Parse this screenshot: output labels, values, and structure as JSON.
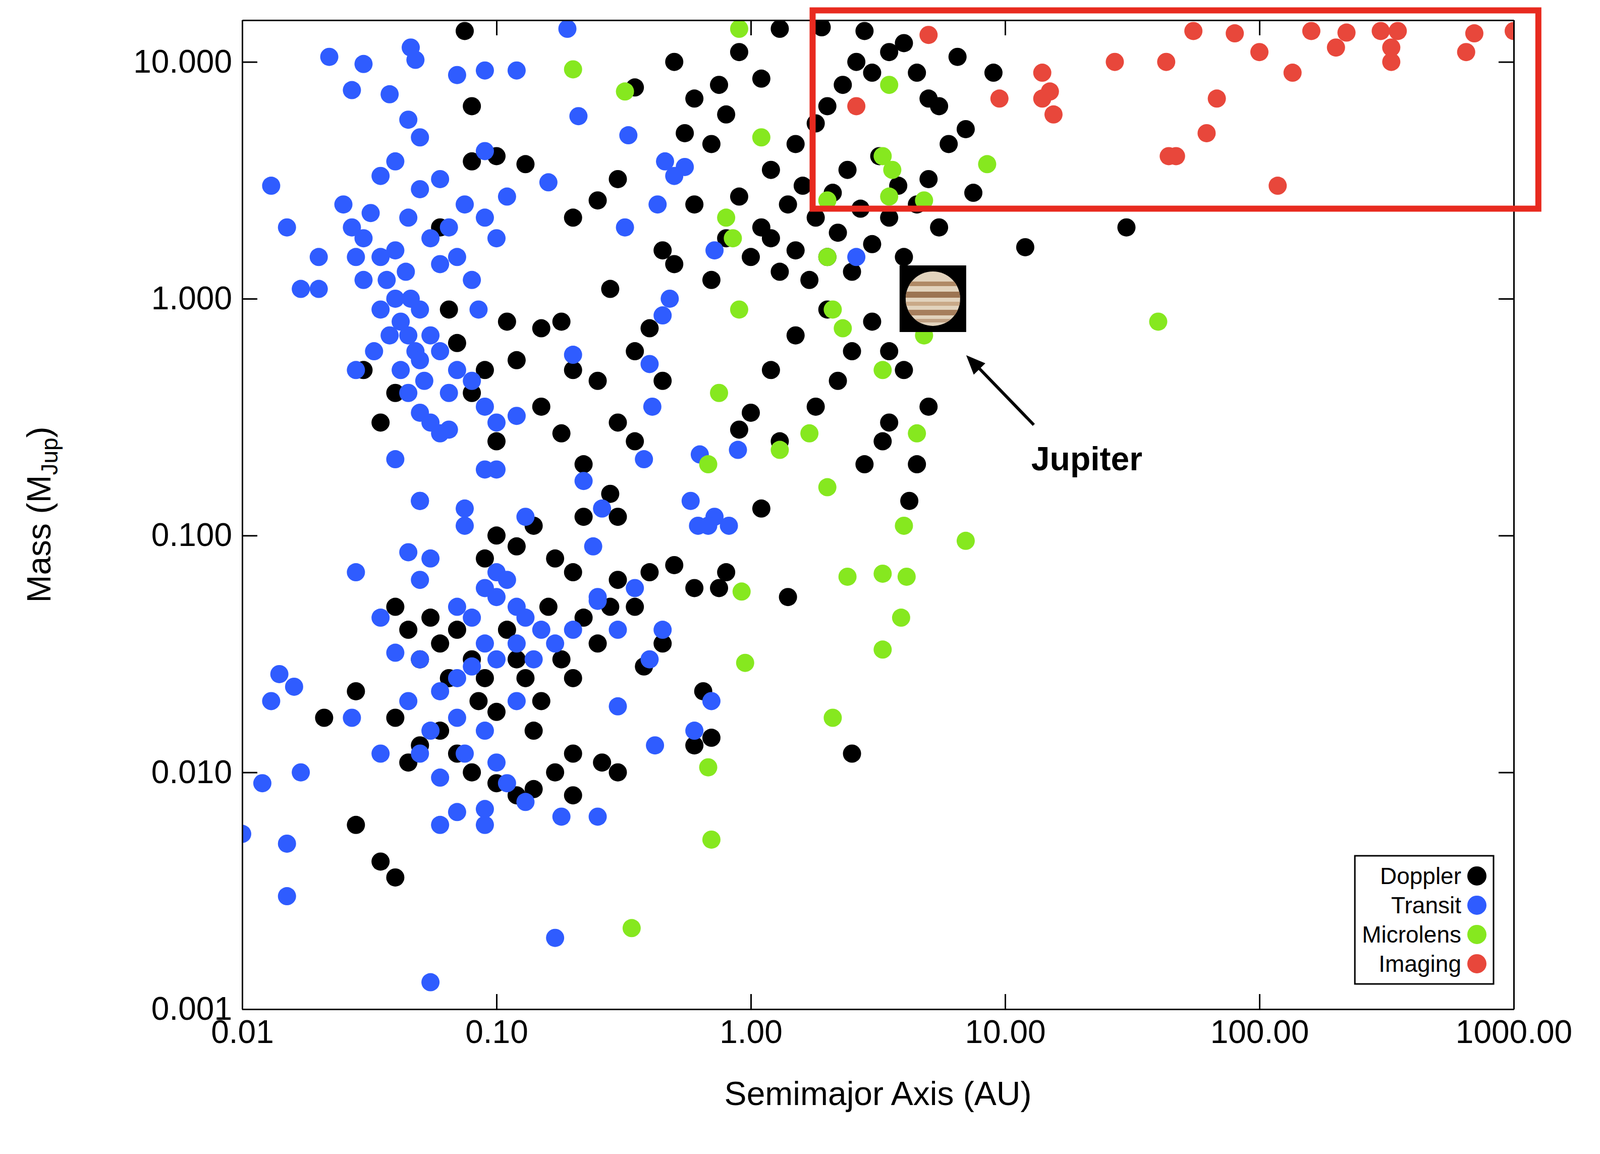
{
  "chart_data": {
    "type": "scatter",
    "xlabel": "Semimajor Axis (AU)",
    "ylabel": "Mass (MJup)",
    "log": true,
    "grid": false,
    "marker": "circle",
    "legend": "lower right",
    "xlim": [
      0.01,
      1000
    ],
    "ylim": [
      0.001,
      15
    ],
    "xticks": [
      0.01,
      {
        "value": 0.1,
        "label": "0.10"
      },
      {
        "value": 1,
        "label": "1.00"
      },
      {
        "value": 10,
        "label": "10.00"
      },
      {
        "value": 100,
        "label": "100.00"
      },
      {
        "value": 1000,
        "label": "1000.00"
      }
    ],
    "yticks": [
      0.001,
      {
        "value": 0.01,
        "label": "0.010"
      },
      {
        "value": 0.1,
        "label": "0.100"
      },
      {
        "value": 1,
        "label": "1.000"
      },
      {
        "value": 10,
        "label": "10.000"
      }
    ],
    "series": [
      {
        "name": "Doppler",
        "color": "#000000",
        "x": [
          1.0,
          1.1,
          1.2,
          1.3,
          1.4,
          1.5,
          1.6,
          1.7,
          1.8,
          2.0,
          2.1,
          2.2,
          2.4,
          2.5,
          2.7,
          3.0,
          3.2,
          3.5,
          3.8,
          4.0,
          4.5,
          5.0,
          5.5,
          6.0,
          1.2,
          1.5,
          1.8,
          2.0,
          2.3,
          2.6,
          3.0,
          3.5,
          4.0,
          4.5,
          5.0,
          5.5,
          6.5,
          7.0,
          9.0,
          2.8,
          1.9,
          1.3,
          0.9,
          1.1,
          0.8,
          0.7,
          0.75,
          0.6,
          0.5,
          0.55,
          0.35,
          0.3,
          0.25,
          0.2,
          0.6,
          0.8,
          0.9,
          0.7,
          0.5,
          0.45,
          3.0,
          3.5,
          4.0,
          5.0,
          4.5,
          3.5,
          2.5,
          2.0,
          1.5,
          1.2,
          1.0,
          0.9,
          1.3,
          1.8,
          2.2,
          2.8,
          3.3,
          4.2,
          1.1,
          0.6,
          0.8,
          1.4,
          2.5,
          0.65,
          0.7,
          0.6,
          30,
          12,
          7.5,
          0.3,
          0.35,
          0.4,
          0.45,
          0.2,
          0.18,
          0.15,
          0.12,
          0.11,
          0.15,
          0.18,
          0.22,
          0.28,
          0.3,
          0.35,
          0.25,
          0.09,
          0.08,
          0.07,
          0.1,
          0.08,
          0.075,
          0.28,
          0.08,
          0.1,
          0.13,
          0.06,
          0.04,
          0.035,
          0.03,
          0.065,
          0.04,
          0.045,
          0.05,
          0.055,
          0.06,
          0.065,
          0.07,
          0.08,
          0.085,
          0.09,
          0.1,
          0.11,
          0.12,
          0.13,
          0.14,
          0.15,
          0.16,
          0.18,
          0.2,
          0.22,
          0.25,
          0.28,
          0.3,
          0.35,
          0.4,
          0.5,
          0.45,
          0.38,
          0.2,
          0.17,
          0.14,
          0.12,
          0.1,
          0.08,
          0.07,
          0.06,
          0.05,
          0.045,
          0.04,
          0.1,
          0.12,
          0.14,
          0.17,
          0.2,
          0.22,
          0.09,
          0.021,
          0.028,
          0.028,
          0.035,
          0.04,
          0.3,
          0.26,
          0.2,
          0.75
        ],
        "values": [
          1.5,
          2.0,
          1.8,
          1.3,
          2.5,
          1.6,
          3.0,
          1.2,
          2.2,
          1.5,
          2.8,
          1.9,
          3.5,
          1.3,
          2.4,
          1.7,
          4.0,
          2.2,
          3.0,
          1.5,
          2.5,
          3.2,
          2.0,
          4.5,
          3.5,
          4.5,
          5.5,
          6.5,
          8.0,
          10,
          9.0,
          11,
          12,
          9.0,
          7.0,
          6.5,
          10.5,
          5.2,
          9.0,
          13.5,
          14,
          13.8,
          11,
          8.5,
          6.0,
          4.5,
          8.0,
          7.0,
          10,
          5.0,
          7.8,
          3.2,
          2.6,
          2.2,
          2.5,
          1.8,
          2.7,
          1.2,
          1.4,
          1.6,
          0.8,
          0.6,
          0.5,
          0.35,
          0.2,
          0.3,
          0.6,
          0.9,
          0.7,
          0.5,
          0.33,
          0.28,
          0.25,
          0.35,
          0.45,
          0.2,
          0.25,
          0.14,
          0.13,
          0.06,
          0.07,
          0.055,
          0.012,
          0.022,
          0.014,
          0.013,
          2.0,
          1.65,
          2.8,
          0.3,
          0.6,
          0.75,
          0.45,
          0.5,
          0.8,
          0.75,
          0.55,
          0.8,
          0.35,
          0.27,
          0.2,
          0.15,
          0.12,
          0.25,
          0.45,
          0.5,
          0.4,
          0.65,
          0.25,
          6.5,
          13.5,
          1.1,
          3.8,
          4.0,
          3.7,
          2.0,
          0.4,
          0.3,
          0.5,
          0.9,
          0.05,
          0.04,
          0.03,
          0.045,
          0.035,
          0.025,
          0.04,
          0.03,
          0.02,
          0.025,
          0.018,
          0.04,
          0.03,
          0.025,
          0.015,
          0.02,
          0.05,
          0.03,
          0.025,
          0.045,
          0.035,
          0.05,
          0.065,
          0.05,
          0.07,
          0.075,
          0.035,
          0.028,
          0.012,
          0.01,
          0.0085,
          0.008,
          0.009,
          0.01,
          0.012,
          0.015,
          0.013,
          0.011,
          0.017,
          0.1,
          0.09,
          0.11,
          0.08,
          0.07,
          0.12,
          0.08,
          0.017,
          0.022,
          0.006,
          0.0042,
          0.0036,
          0.01,
          0.011,
          0.008,
          0.06
        ]
      },
      {
        "name": "Transit",
        "color": "#2f5cff",
        "x": [
          0.022,
          0.03,
          0.027,
          0.038,
          0.046,
          0.048,
          0.07,
          0.09,
          0.12,
          0.19,
          0.045,
          0.05,
          0.013,
          0.015,
          0.02,
          0.017,
          0.02,
          0.21,
          0.16,
          0.11,
          0.09,
          0.33,
          0.32,
          0.43,
          0.46,
          0.5,
          0.55,
          0.48,
          0.45,
          0.38,
          0.4,
          0.2,
          0.72,
          0.72,
          0.63,
          0.58,
          0.62,
          0.68,
          0.82,
          0.89,
          0.41,
          2.6,
          0.025,
          0.027,
          0.03,
          0.032,
          0.035,
          0.037,
          0.04,
          0.042,
          0.045,
          0.048,
          0.05,
          0.052,
          0.04,
          0.044,
          0.046,
          0.05,
          0.055,
          0.06,
          0.035,
          0.038,
          0.03,
          0.028,
          0.033,
          0.042,
          0.045,
          0.05,
          0.055,
          0.06,
          0.065,
          0.07,
          0.08,
          0.09,
          0.1,
          0.12,
          0.055,
          0.06,
          0.065,
          0.07,
          0.075,
          0.08,
          0.085,
          0.09,
          0.1,
          0.028,
          0.04,
          0.05,
          0.065,
          0.075,
          0.09,
          0.045,
          0.05,
          0.06,
          0.035,
          0.04,
          0.045,
          0.05,
          0.055,
          0.07,
          0.08,
          0.09,
          0.1,
          0.1,
          0.11,
          0.12,
          0.13,
          0.12,
          0.1,
          0.09,
          0.08,
          0.07,
          0.06,
          0.05,
          0.04,
          0.045,
          0.055,
          0.07,
          0.075,
          0.09,
          0.1,
          0.11,
          0.09,
          0.09,
          0.12,
          0.14,
          0.15,
          0.17,
          0.2,
          0.25,
          0.24,
          0.25,
          0.3,
          0.35,
          0.45,
          0.4,
          0.3,
          0.25,
          0.18,
          0.13,
          0.06,
          0.05,
          0.035,
          0.017,
          0.012,
          0.01,
          0.015,
          0.015,
          0.014,
          0.016,
          0.013,
          0.027,
          0.028,
          0.035,
          0.06,
          0.07,
          0.17,
          0.055,
          0.42,
          0.7,
          0.6,
          0.22,
          0.26,
          0.13,
          0.1,
          0.05,
          0.075
        ],
        "values": [
          10.5,
          9.8,
          7.6,
          7.3,
          11.5,
          10.2,
          8.8,
          9.2,
          9.2,
          13.8,
          5.7,
          4.8,
          3.0,
          2.0,
          1.5,
          1.1,
          1.1,
          5.9,
          3.1,
          2.7,
          4.2,
          4.9,
          2.0,
          2.5,
          3.8,
          3.3,
          3.6,
          1.0,
          0.85,
          0.21,
          0.53,
          0.58,
          1.6,
          0.12,
          0.22,
          0.14,
          0.11,
          0.11,
          0.11,
          0.23,
          0.35,
          1.5,
          2.5,
          2.0,
          1.8,
          2.3,
          1.5,
          1.2,
          1.0,
          0.8,
          0.7,
          0.6,
          0.55,
          0.45,
          1.6,
          1.3,
          1.0,
          0.9,
          0.7,
          0.6,
          0.9,
          0.7,
          1.2,
          1.5,
          0.6,
          0.5,
          0.4,
          0.33,
          0.3,
          0.27,
          0.4,
          0.5,
          0.45,
          0.35,
          0.3,
          0.32,
          1.8,
          1.4,
          2.0,
          1.5,
          2.5,
          1.2,
          0.9,
          2.2,
          1.8,
          0.5,
          0.21,
          0.14,
          0.28,
          0.13,
          0.19,
          2.2,
          2.9,
          3.2,
          3.3,
          3.8,
          0.085,
          0.065,
          0.08,
          0.05,
          0.045,
          0.06,
          0.055,
          0.07,
          0.065,
          0.05,
          0.045,
          0.035,
          0.03,
          0.035,
          0.028,
          0.025,
          0.022,
          0.03,
          0.032,
          0.02,
          0.015,
          0.017,
          0.012,
          0.015,
          0.011,
          0.009,
          0.007,
          0.006,
          0.02,
          0.03,
          0.04,
          0.035,
          0.04,
          0.055,
          0.09,
          0.053,
          0.04,
          0.06,
          0.04,
          0.03,
          0.019,
          0.0065,
          0.0065,
          0.0075,
          0.0095,
          0.012,
          0.012,
          0.01,
          0.009,
          0.0055,
          0.005,
          0.003,
          0.026,
          0.023,
          0.02,
          0.017,
          0.07,
          0.045,
          0.006,
          0.0068,
          0.002,
          0.0013,
          0.013,
          0.02,
          0.015,
          0.17,
          0.13,
          0.12,
          0.19,
          0.14,
          0.11
        ]
      },
      {
        "name": "Microlens",
        "color": "#86e81f",
        "x": [
          0.2,
          0.32,
          0.9,
          1.1,
          2.0,
          3.5,
          3.3,
          3.6,
          3.5,
          4.8,
          8.5,
          2.0,
          2.1,
          2.3,
          0.8,
          0.85,
          0.9,
          0.75,
          0.68,
          1.3,
          1.7,
          2.0,
          3.3,
          4.8,
          4.5,
          4.0,
          7.0,
          40,
          0.92,
          2.4,
          3.3,
          4.1,
          3.9,
          3.3,
          0.95,
          2.1,
          0.68,
          0.7,
          0.34
        ],
        "values": [
          9.3,
          7.5,
          13.8,
          4.8,
          2.6,
          8.0,
          4.0,
          3.5,
          2.7,
          2.6,
          3.7,
          1.5,
          0.9,
          0.75,
          2.2,
          1.8,
          0.9,
          0.4,
          0.2,
          0.23,
          0.27,
          0.16,
          0.5,
          0.7,
          0.27,
          0.11,
          0.095,
          0.8,
          0.058,
          0.067,
          0.069,
          0.067,
          0.045,
          0.033,
          0.029,
          0.017,
          0.0105,
          0.0052,
          0.0022
        ]
      },
      {
        "name": "Imaging",
        "color": "#e8473b",
        "x": [
          2.6,
          5.0,
          9.5,
          14,
          14,
          15,
          15.5,
          27,
          43,
          44,
          47,
          55,
          62,
          68,
          80,
          100,
          118,
          135,
          160,
          200,
          220,
          300,
          330,
          330,
          350,
          650,
          700,
          1000
        ],
        "values": [
          6.5,
          13.0,
          7.0,
          9.0,
          7.0,
          7.5,
          6.0,
          10,
          10,
          4.0,
          4.0,
          13.5,
          5.0,
          7.0,
          13.2,
          11,
          3.0,
          9.0,
          13.5,
          11.5,
          13.3,
          13.5,
          10,
          11.5,
          13.5,
          11,
          13.2,
          13.5
        ]
      }
    ],
    "annotations": [
      {
        "text": "Jupiter",
        "x": 5.2,
        "y": 1.0
      }
    ],
    "highlight": {
      "x": [
        1.75,
        1250
      ],
      "y": [
        2.4,
        16.5
      ],
      "color": "#e82a1f"
    }
  }
}
